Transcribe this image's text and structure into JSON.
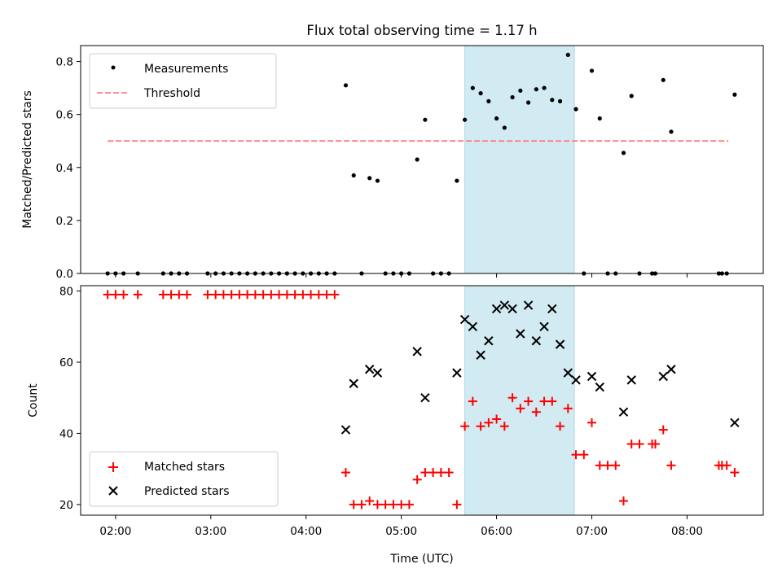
{
  "title": "Flux total observing time = 1.17 h",
  "colors": {
    "measurement": "#000000",
    "threshold": "#ff7f7f",
    "matched": "#ff0000",
    "predicted": "#000000",
    "highlight": "#add8e6"
  },
  "chart_data": [
    {
      "type": "scatter",
      "ylabel": "Matched/Predicted stars",
      "ylim": [
        0,
        0.86
      ],
      "yticks": [
        {
          "value": 0.0,
          "label": "0.0"
        },
        {
          "value": 0.2,
          "label": "0.2"
        },
        {
          "value": 0.4,
          "label": "0.4"
        },
        {
          "value": 0.6,
          "label": "0.6"
        },
        {
          "value": 0.8,
          "label": "0.8"
        }
      ],
      "xlim": [
        "01:38",
        "08:48"
      ],
      "highlight_span": [
        "05:40",
        "06:49"
      ],
      "legend": {
        "placement": "top-left",
        "entries": [
          "Measurements",
          "Threshold"
        ]
      },
      "threshold": {
        "name": "Threshold",
        "value": 0.5,
        "x_range": [
          "01:55",
          "08:26"
        ]
      },
      "series": [
        {
          "name": "Measurements",
          "marker": "dot",
          "points": [
            [
              "01:55",
              0
            ],
            [
              "02:00",
              0
            ],
            [
              "02:05",
              0
            ],
            [
              "02:14",
              0
            ],
            [
              "02:30",
              0
            ],
            [
              "02:35",
              0
            ],
            [
              "02:40",
              0
            ],
            [
              "02:45",
              0
            ],
            [
              "02:58",
              0
            ],
            [
              "03:03",
              0
            ],
            [
              "03:08",
              0
            ],
            [
              "03:13",
              0
            ],
            [
              "03:18",
              0
            ],
            [
              "03:23",
              0
            ],
            [
              "03:28",
              0
            ],
            [
              "03:33",
              0
            ],
            [
              "03:38",
              0
            ],
            [
              "03:43",
              0
            ],
            [
              "03:48",
              0
            ],
            [
              "03:53",
              0
            ],
            [
              "03:58",
              0
            ],
            [
              "04:03",
              0
            ],
            [
              "04:08",
              0
            ],
            [
              "04:13",
              0
            ],
            [
              "04:18",
              0
            ],
            [
              "04:25",
              0.71
            ],
            [
              "04:30",
              0.37
            ],
            [
              "04:35",
              0
            ],
            [
              "04:40",
              0.36
            ],
            [
              "04:45",
              0.35
            ],
            [
              "04:50",
              0
            ],
            [
              "04:55",
              0
            ],
            [
              "05:00",
              0
            ],
            [
              "05:05",
              0
            ],
            [
              "05:10",
              0.43
            ],
            [
              "05:15",
              0.58
            ],
            [
              "05:20",
              0
            ],
            [
              "05:25",
              0
            ],
            [
              "05:30",
              0
            ],
            [
              "05:35",
              0.35
            ],
            [
              "05:40",
              0.58
            ],
            [
              "05:45",
              0.7
            ],
            [
              "05:50",
              0.68
            ],
            [
              "05:55",
              0.65
            ],
            [
              "06:00",
              0.585
            ],
            [
              "06:05",
              0.55
            ],
            [
              "06:10",
              0.665
            ],
            [
              "06:15",
              0.69
            ],
            [
              "06:20",
              0.645
            ],
            [
              "06:25",
              0.695
            ],
            [
              "06:30",
              0.7
            ],
            [
              "06:35",
              0.655
            ],
            [
              "06:40",
              0.65
            ],
            [
              "06:45",
              0.825
            ],
            [
              "06:50",
              0.62
            ],
            [
              "06:55",
              0
            ],
            [
              "07:00",
              0.765
            ],
            [
              "07:05",
              0.585
            ],
            [
              "07:10",
              0
            ],
            [
              "07:15",
              0
            ],
            [
              "07:20",
              0.455
            ],
            [
              "07:25",
              0.67
            ],
            [
              "07:30",
              0
            ],
            [
              "07:38",
              0
            ],
            [
              "07:40",
              0
            ],
            [
              "07:45",
              0.73
            ],
            [
              "07:50",
              0.535
            ],
            [
              "08:20",
              0
            ],
            [
              "08:22",
              0
            ],
            [
              "08:25",
              0
            ],
            [
              "08:30",
              0.675
            ]
          ]
        }
      ]
    },
    {
      "type": "scatter",
      "xlabel": "Time (UTC)",
      "ylabel": "Count",
      "ylim": [
        17,
        81.5
      ],
      "yticks": [
        {
          "value": 20,
          "label": "20"
        },
        {
          "value": 40,
          "label": "40"
        },
        {
          "value": 60,
          "label": "60"
        },
        {
          "value": 80,
          "label": "80"
        }
      ],
      "xlim": [
        "01:38",
        "08:48"
      ],
      "xticks": [
        {
          "value": "02:00",
          "label": "02:00"
        },
        {
          "value": "03:00",
          "label": "03:00"
        },
        {
          "value": "04:00",
          "label": "04:00"
        },
        {
          "value": "05:00",
          "label": "05:00"
        },
        {
          "value": "06:00",
          "label": "06:00"
        },
        {
          "value": "07:00",
          "label": "07:00"
        },
        {
          "value": "08:00",
          "label": "08:00"
        }
      ],
      "highlight_span": [
        "05:40",
        "06:49"
      ],
      "legend": {
        "placement": "bottom-left",
        "entries": [
          "Matched stars",
          "Predicted stars"
        ]
      },
      "series": [
        {
          "name": "Matched stars",
          "marker": "plus",
          "points": [
            [
              "01:55",
              79
            ],
            [
              "02:00",
              79
            ],
            [
              "02:05",
              79
            ],
            [
              "02:14",
              79
            ],
            [
              "02:30",
              79
            ],
            [
              "02:35",
              79
            ],
            [
              "02:40",
              79
            ],
            [
              "02:45",
              79
            ],
            [
              "02:58",
              79
            ],
            [
              "03:03",
              79
            ],
            [
              "03:08",
              79
            ],
            [
              "03:13",
              79
            ],
            [
              "03:18",
              79
            ],
            [
              "03:23",
              79
            ],
            [
              "03:28",
              79
            ],
            [
              "03:33",
              79
            ],
            [
              "03:38",
              79
            ],
            [
              "03:43",
              79
            ],
            [
              "03:48",
              79
            ],
            [
              "03:53",
              79
            ],
            [
              "03:58",
              79
            ],
            [
              "04:03",
              79
            ],
            [
              "04:08",
              79
            ],
            [
              "04:13",
              79
            ],
            [
              "04:18",
              79
            ],
            [
              "04:25",
              29
            ],
            [
              "04:30",
              20
            ],
            [
              "04:35",
              20
            ],
            [
              "04:40",
              21
            ],
            [
              "04:45",
              20
            ],
            [
              "04:50",
              20
            ],
            [
              "04:55",
              20
            ],
            [
              "05:00",
              20
            ],
            [
              "05:05",
              20
            ],
            [
              "05:10",
              27
            ],
            [
              "05:15",
              29
            ],
            [
              "05:20",
              29
            ],
            [
              "05:25",
              29
            ],
            [
              "05:30",
              29
            ],
            [
              "05:35",
              20
            ],
            [
              "05:40",
              42
            ],
            [
              "05:45",
              49
            ],
            [
              "05:50",
              42
            ],
            [
              "05:55",
              43
            ],
            [
              "06:00",
              44
            ],
            [
              "06:05",
              42
            ],
            [
              "06:10",
              50
            ],
            [
              "06:15",
              47
            ],
            [
              "06:20",
              49
            ],
            [
              "06:25",
              46
            ],
            [
              "06:30",
              49
            ],
            [
              "06:35",
              49
            ],
            [
              "06:40",
              42
            ],
            [
              "06:45",
              47
            ],
            [
              "06:50",
              34
            ],
            [
              "06:55",
              34
            ],
            [
              "07:00",
              43
            ],
            [
              "07:05",
              31
            ],
            [
              "07:10",
              31
            ],
            [
              "07:15",
              31
            ],
            [
              "07:20",
              21
            ],
            [
              "07:25",
              37
            ],
            [
              "07:30",
              37
            ],
            [
              "07:38",
              37
            ],
            [
              "07:40",
              37
            ],
            [
              "07:45",
              41
            ],
            [
              "07:50",
              31
            ],
            [
              "08:20",
              31
            ],
            [
              "08:22",
              31
            ],
            [
              "08:25",
              31
            ],
            [
              "08:30",
              29
            ]
          ]
        },
        {
          "name": "Predicted stars",
          "marker": "x",
          "points": [
            [
              "04:25",
              41
            ],
            [
              "04:30",
              54
            ],
            [
              "04:40",
              58
            ],
            [
              "04:45",
              57
            ],
            [
              "05:10",
              63
            ],
            [
              "05:15",
              50
            ],
            [
              "05:35",
              57
            ],
            [
              "05:40",
              72
            ],
            [
              "05:45",
              70
            ],
            [
              "05:50",
              62
            ],
            [
              "05:55",
              66
            ],
            [
              "06:00",
              75
            ],
            [
              "06:05",
              76
            ],
            [
              "06:10",
              75
            ],
            [
              "06:15",
              68
            ],
            [
              "06:20",
              76
            ],
            [
              "06:25",
              66
            ],
            [
              "06:30",
              70
            ],
            [
              "06:35",
              75
            ],
            [
              "06:40",
              65
            ],
            [
              "06:45",
              57
            ],
            [
              "06:50",
              55
            ],
            [
              "07:00",
              56
            ],
            [
              "07:05",
              53
            ],
            [
              "07:20",
              46
            ],
            [
              "07:25",
              55
            ],
            [
              "07:45",
              56
            ],
            [
              "07:50",
              58
            ],
            [
              "08:30",
              43
            ]
          ]
        }
      ]
    }
  ]
}
